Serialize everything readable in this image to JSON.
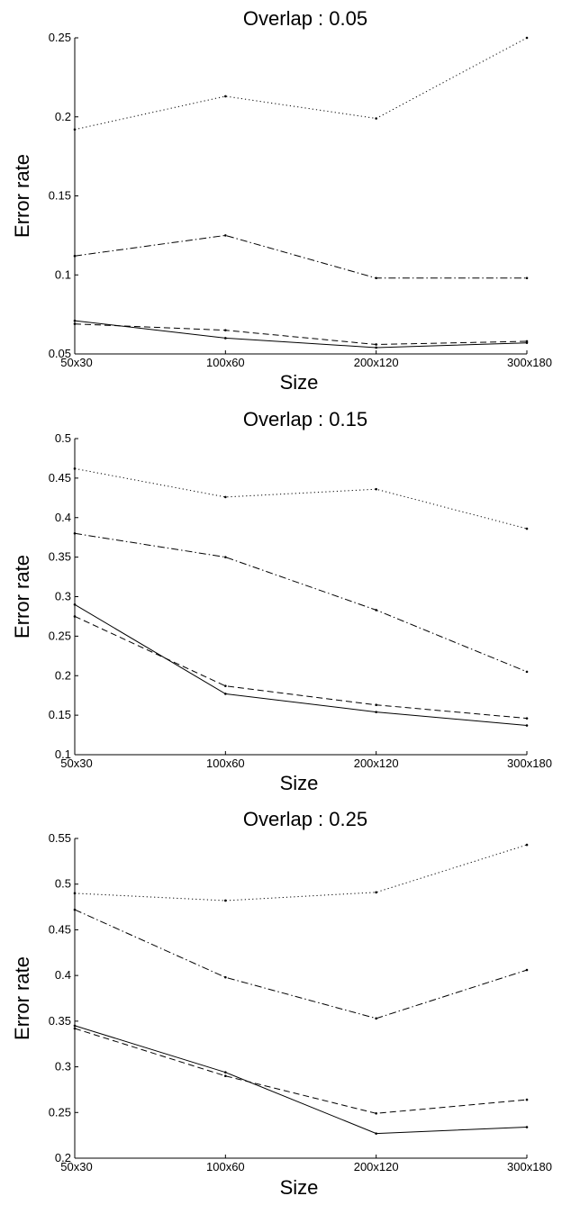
{
  "chart_data": [
    {
      "type": "line",
      "title": "Overlap : 0.05",
      "xlabel": "Size",
      "ylabel": "Error rate",
      "categories": [
        "50x30",
        "100x60",
        "200x120",
        "300x180"
      ],
      "ylim": [
        0.05,
        0.25
      ],
      "yticks": [
        "0.05",
        "0.1",
        "0.15",
        "0.2",
        "0.25"
      ],
      "grid": false,
      "series": [
        {
          "style": "dotted",
          "values": [
            0.192,
            0.213,
            0.199,
            0.25
          ]
        },
        {
          "style": "dashdot",
          "values": [
            0.112,
            0.125,
            0.098,
            0.098
          ]
        },
        {
          "style": "dashed",
          "values": [
            0.069,
            0.065,
            0.056,
            0.058
          ]
        },
        {
          "style": "solid",
          "values": [
            0.071,
            0.06,
            0.054,
            0.057
          ]
        }
      ]
    },
    {
      "type": "line",
      "title": "Overlap : 0.15",
      "xlabel": "Size",
      "ylabel": "Error rate",
      "categories": [
        "50x30",
        "100x60",
        "200x120",
        "300x180"
      ],
      "ylim": [
        0.1,
        0.5
      ],
      "yticks": [
        "0.1",
        "0.15",
        "0.2",
        "0.25",
        "0.3",
        "0.35",
        "0.4",
        "0.45",
        "0.5"
      ],
      "grid": false,
      "series": [
        {
          "style": "dotted",
          "values": [
            0.462,
            0.426,
            0.436,
            0.386
          ]
        },
        {
          "style": "dashdot",
          "values": [
            0.38,
            0.35,
            0.283,
            0.205
          ]
        },
        {
          "style": "dashed",
          "values": [
            0.275,
            0.187,
            0.163,
            0.146
          ]
        },
        {
          "style": "solid",
          "values": [
            0.29,
            0.177,
            0.154,
            0.137
          ]
        }
      ]
    },
    {
      "type": "line",
      "title": "Overlap : 0.25",
      "xlabel": "Size",
      "ylabel": "Error rate",
      "categories": [
        "50x30",
        "100x60",
        "200x120",
        "300x180"
      ],
      "ylim": [
        0.2,
        0.55
      ],
      "yticks": [
        "0.2",
        "0.25",
        "0.3",
        "0.35",
        "0.4",
        "0.45",
        "0.5",
        "0.55"
      ],
      "grid": false,
      "series": [
        {
          "style": "dotted",
          "values": [
            0.49,
            0.482,
            0.491,
            0.543
          ]
        },
        {
          "style": "dashdot",
          "values": [
            0.472,
            0.398,
            0.353,
            0.406
          ]
        },
        {
          "style": "dashed",
          "values": [
            0.342,
            0.29,
            0.249,
            0.264
          ]
        },
        {
          "style": "solid",
          "values": [
            0.345,
            0.294,
            0.227,
            0.234
          ]
        }
      ]
    }
  ]
}
